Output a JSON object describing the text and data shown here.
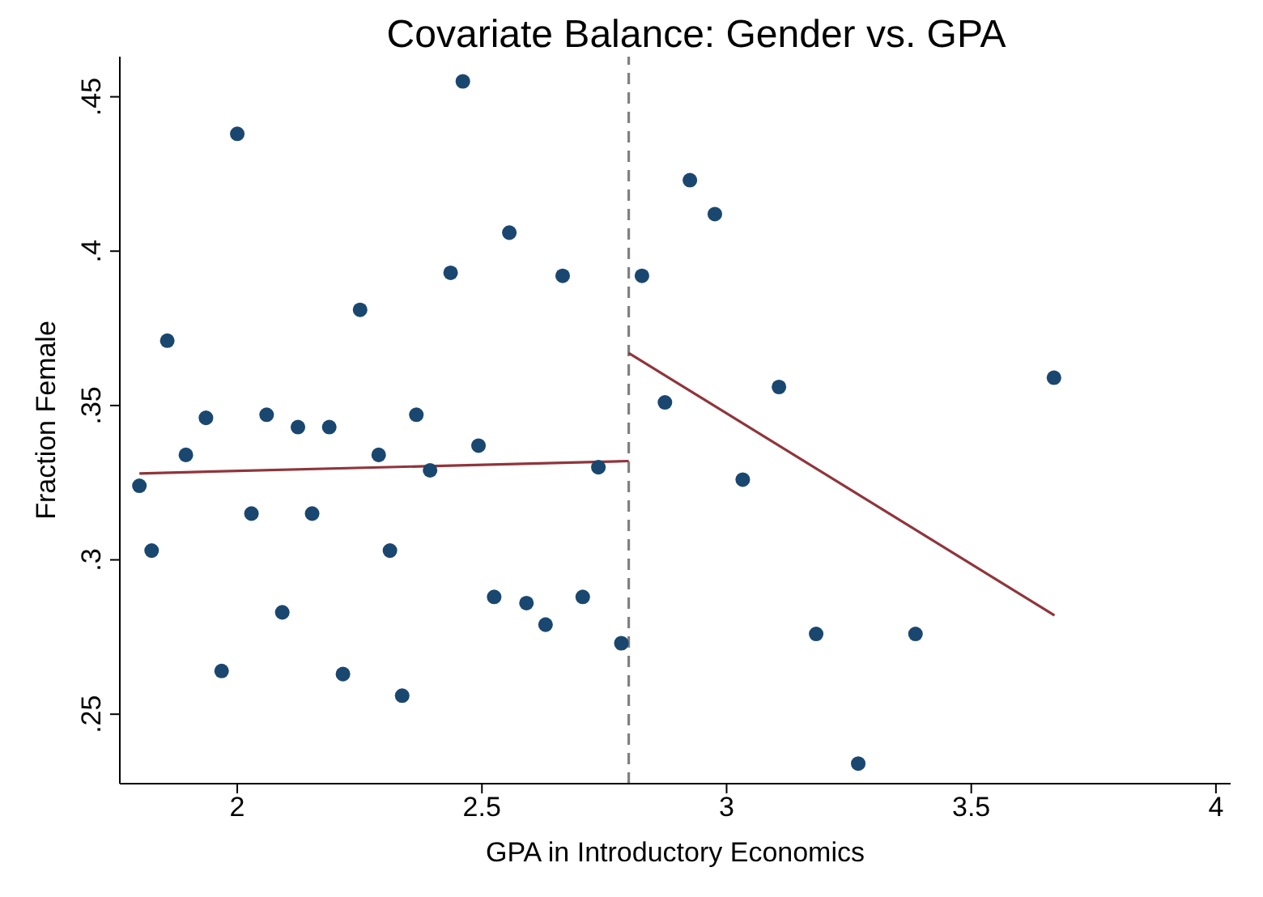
{
  "chart_data": {
    "type": "scatter",
    "title": "Covariate Balance: Gender vs. GPA",
    "xlabel": "GPA in Introductory Economics",
    "ylabel": "Fraction Female",
    "xlim": [
      1.76,
      4.03
    ],
    "ylim": [
      0.2275,
      0.463
    ],
    "xticks": [
      2,
      2.5,
      3,
      3.5,
      4
    ],
    "yticks": [
      {
        "value": 0.25,
        "label": ".25"
      },
      {
        "value": 0.3,
        "label": ".3"
      },
      {
        "value": 0.35,
        "label": ".35"
      },
      {
        "value": 0.4,
        "label": ".4"
      },
      {
        "value": 0.45,
        "label": ".45"
      }
    ],
    "line_style": "solid",
    "ref_lines": [
      {
        "axis": "x",
        "value": 2.8,
        "color": "#808080",
        "line_style": "dashed"
      }
    ],
    "series": [
      {
        "marker": "circle",
        "color": "#1a476f",
        "x": [
          1.8,
          1.825,
          1.857,
          1.895,
          1.936,
          1.968,
          2.0,
          2.029,
          2.06,
          2.092,
          2.124,
          2.153,
          2.188,
          2.216,
          2.251,
          2.289,
          2.312,
          2.337,
          2.366,
          2.394,
          2.436,
          2.461,
          2.493,
          2.525,
          2.556,
          2.591,
          2.63,
          2.665,
          2.706,
          2.738,
          2.785,
          2.827,
          2.874,
          2.925,
          2.976,
          3.033,
          3.107,
          3.183,
          3.269,
          3.386,
          3.669
        ],
        "values": [
          0.324,
          0.303,
          0.371,
          0.334,
          0.346,
          0.264,
          0.438,
          0.315,
          0.347,
          0.283,
          0.343,
          0.315,
          0.343,
          0.263,
          0.381,
          0.334,
          0.303,
          0.256,
          0.347,
          0.329,
          0.393,
          0.455,
          0.337,
          0.288,
          0.406,
          0.286,
          0.279,
          0.392,
          0.288,
          0.33,
          0.273,
          0.392,
          0.351,
          0.423,
          0.412,
          0.326,
          0.356,
          0.276,
          0.234,
          0.276,
          0.359
        ]
      },
      {
        "type": "line",
        "color": "#90353b",
        "x": [
          1.8,
          2.8
        ],
        "values": [
          0.328,
          0.332
        ]
      },
      {
        "type": "line",
        "color": "#90353b",
        "x": [
          2.8,
          3.67
        ],
        "values": [
          0.367,
          0.282
        ]
      }
    ]
  }
}
